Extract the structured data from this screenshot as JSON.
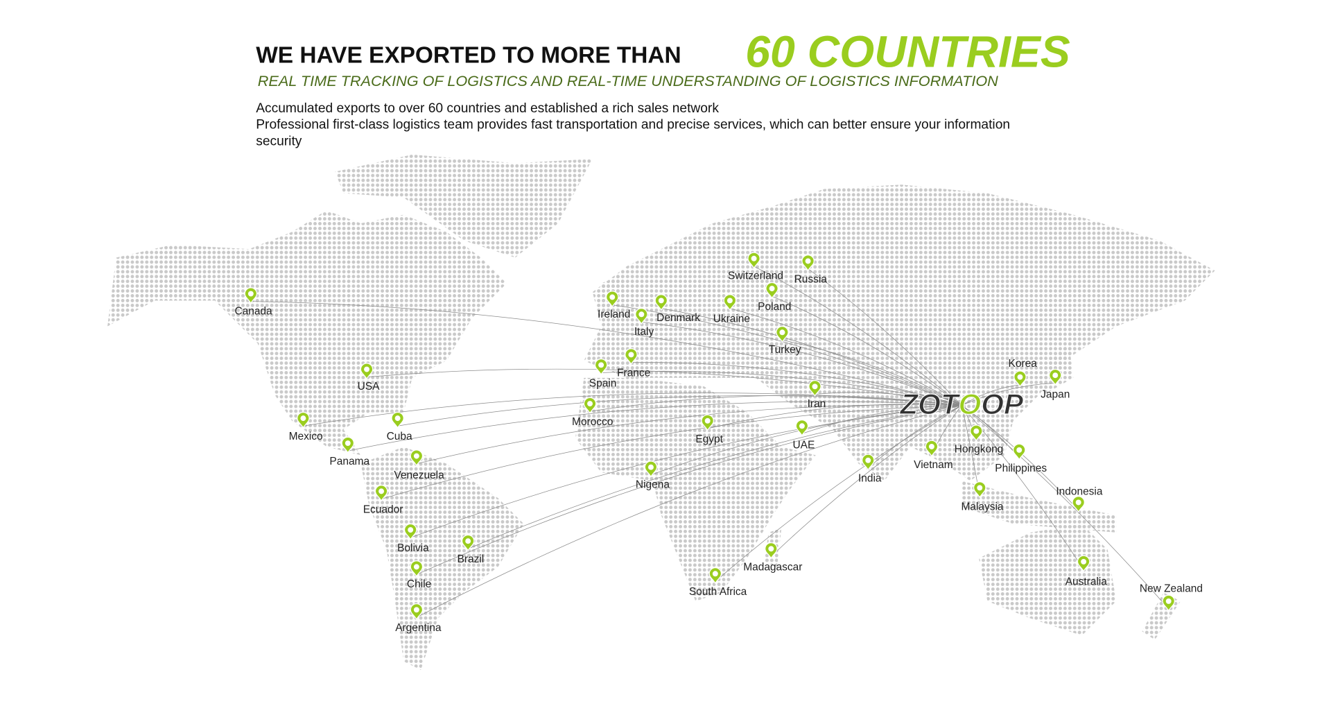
{
  "header": {
    "title": "WE HAVE EXPORTED TO MORE THAN",
    "highlight": "60 COUNTRIES",
    "subtitle": "REAL TIME TRACKING OF LOGISTICS AND REAL-TIME UNDERSTANDING OF LOGISTICS INFORMATION"
  },
  "description": {
    "lines": [
      "Accumulated exports to over 60 countries and established a rich sales network",
      "Professional first-class logistics team provides fast transportation and precise services, which can better ensure your information",
      "security"
    ]
  },
  "map": {
    "logo": [
      "ZOT",
      "O",
      "OP"
    ],
    "pins": [
      {
        "label": "Canada"
      },
      {
        "label": "USA"
      },
      {
        "label": "Mexico"
      },
      {
        "label": "Cuba"
      },
      {
        "label": "Panama"
      },
      {
        "label": "Venezuela"
      },
      {
        "label": "Ecuador"
      },
      {
        "label": "Bolivia"
      },
      {
        "label": "Brazil"
      },
      {
        "label": "Chile"
      },
      {
        "label": "Argentina"
      },
      {
        "label": "Ireland"
      },
      {
        "label": "Denmark"
      },
      {
        "label": "Italy"
      },
      {
        "label": "Switzerland"
      },
      {
        "label": "Russia"
      },
      {
        "label": "Poland"
      },
      {
        "label": "Ukraine"
      },
      {
        "label": "Turkey"
      },
      {
        "label": "France"
      },
      {
        "label": "Spain"
      },
      {
        "label": "Morocco"
      },
      {
        "label": "Egypt"
      },
      {
        "label": "Iran"
      },
      {
        "label": "UAE"
      },
      {
        "label": "Nigena"
      },
      {
        "label": "India"
      },
      {
        "label": "Vietnam"
      },
      {
        "label": "Hongkong"
      },
      {
        "label": "Philippines"
      },
      {
        "label": "Malaysia"
      },
      {
        "label": "Korea"
      },
      {
        "label": "Japan"
      },
      {
        "label": "Indonesia"
      },
      {
        "label": "Australia"
      },
      {
        "label": "New Zealand"
      },
      {
        "label": "Madagascar"
      },
      {
        "label": "South Africa"
      }
    ]
  }
}
